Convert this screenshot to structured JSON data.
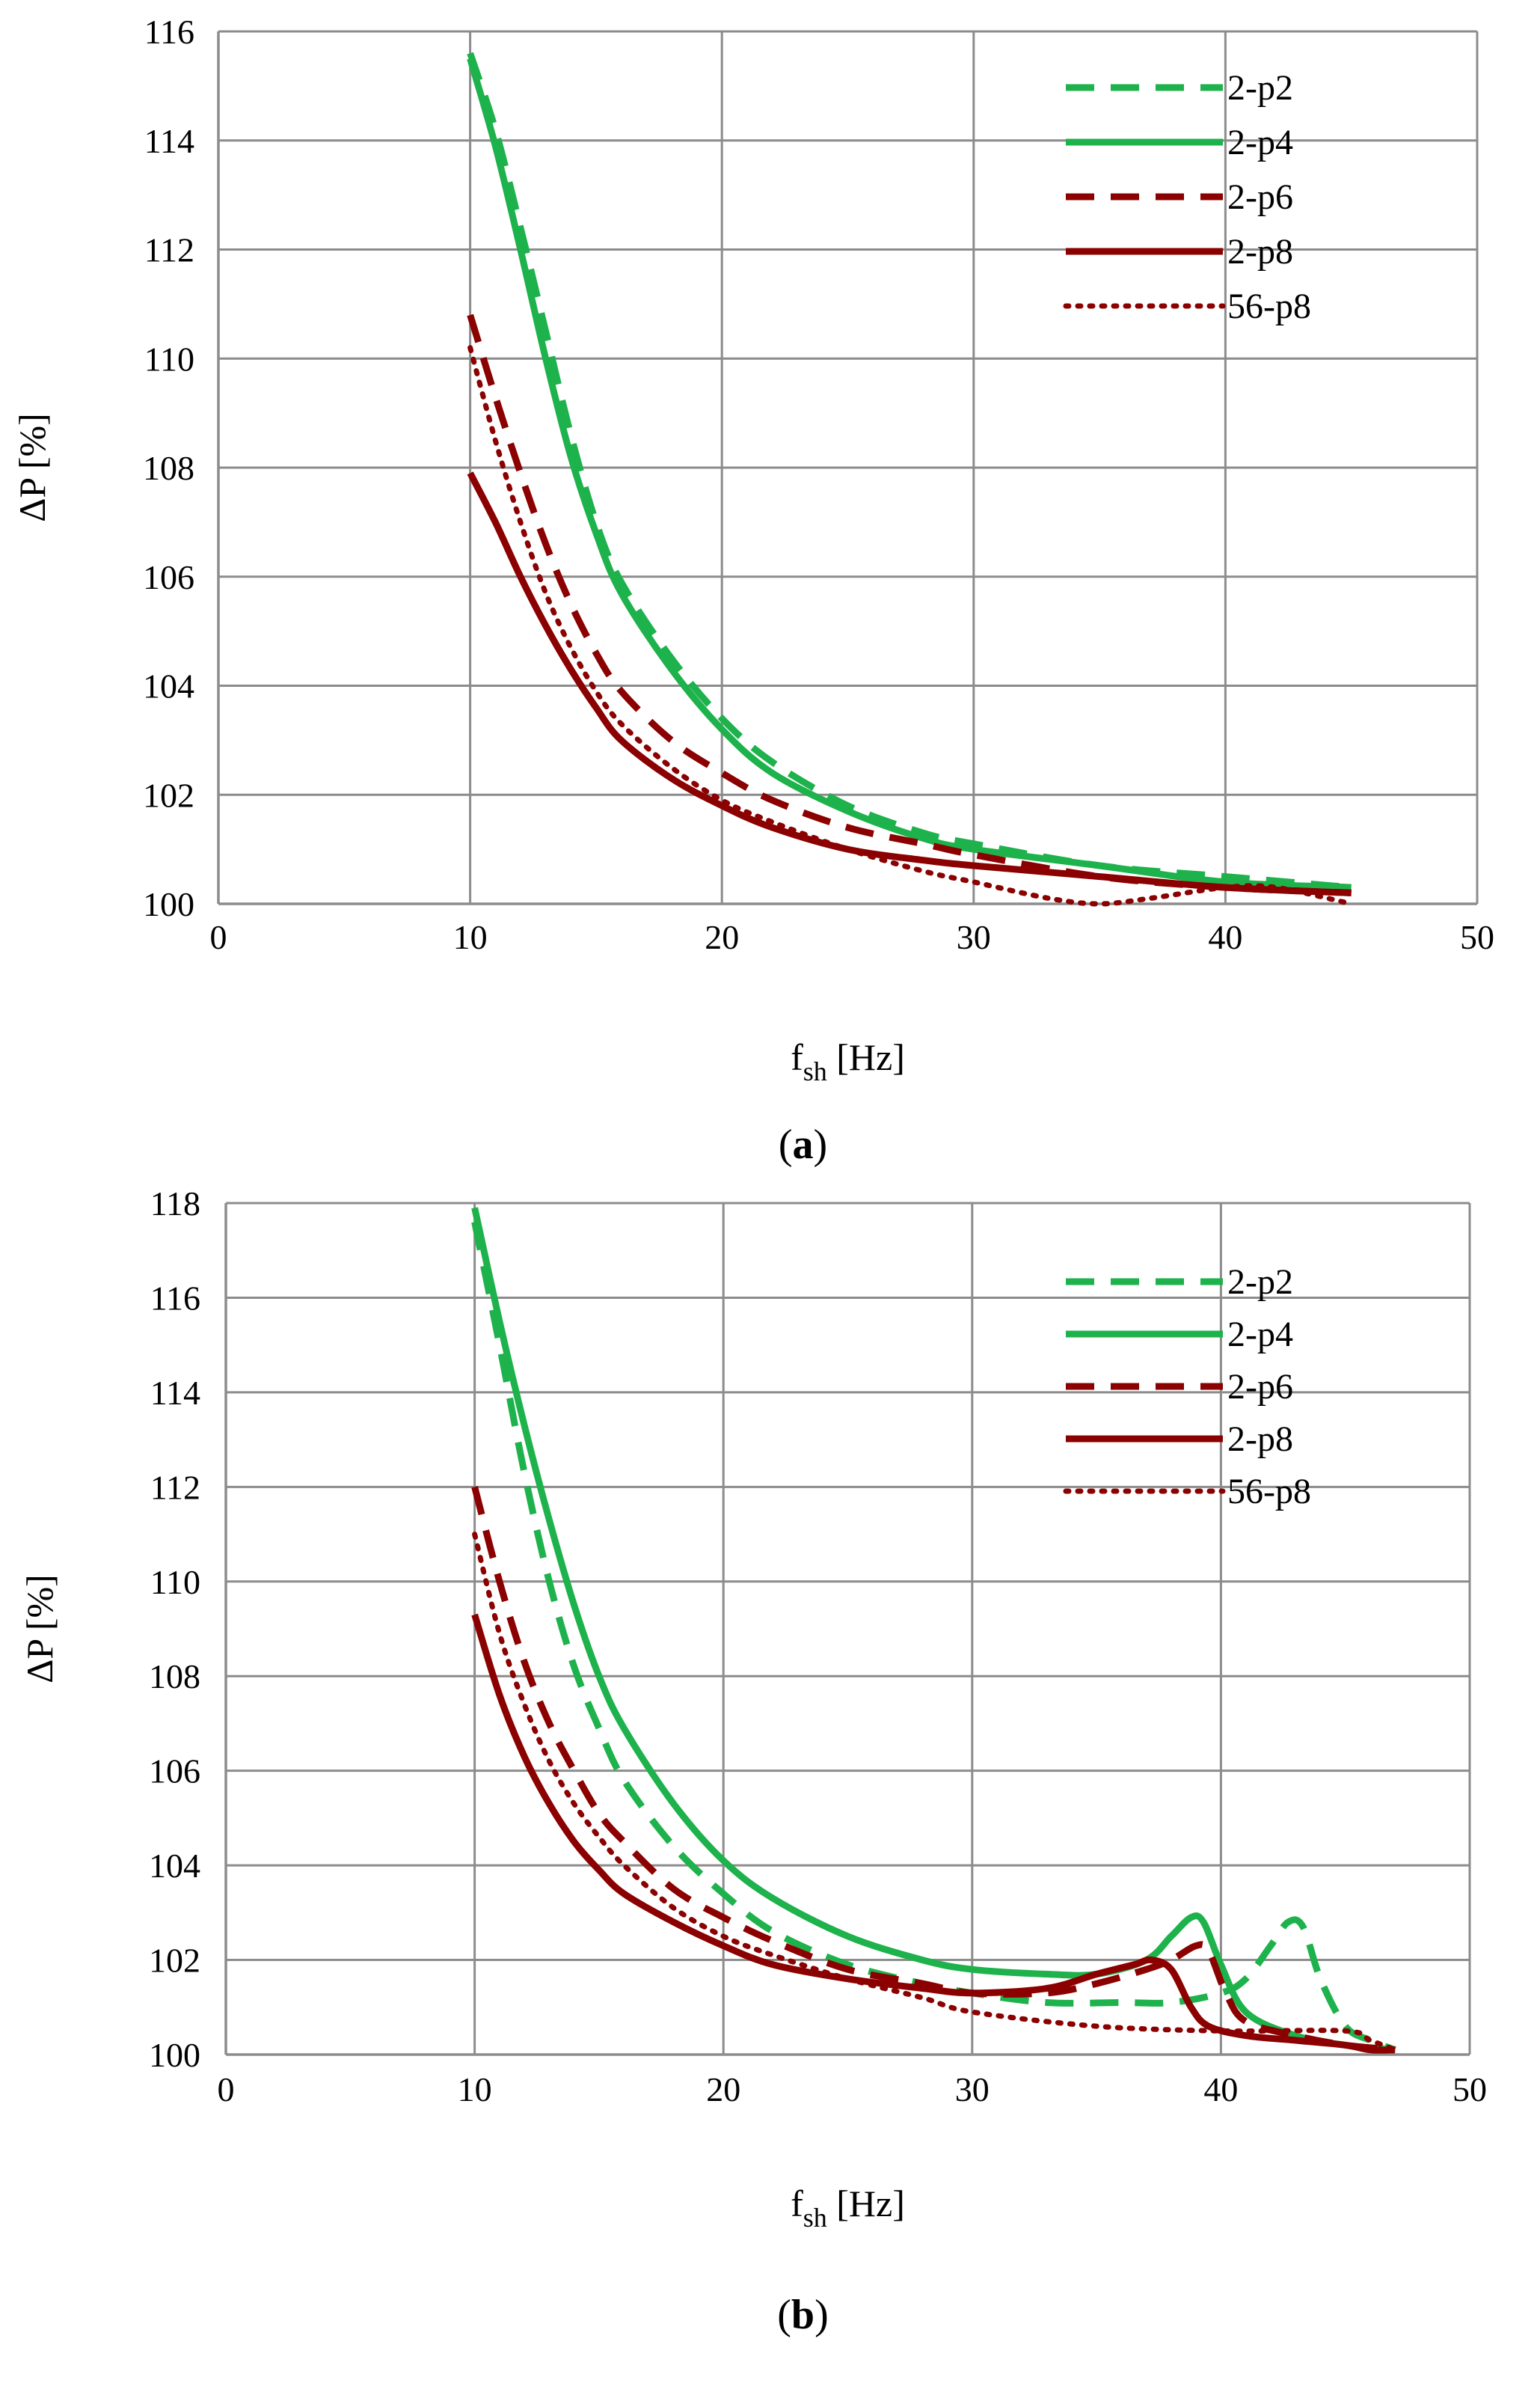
{
  "colors": {
    "green": "#1db24b",
    "darkred": "#8b0000",
    "grid": "#8c8c8c",
    "axis": "#8c8c8c"
  },
  "chart_data": [
    {
      "id": "a",
      "type": "line",
      "caption_open": "(",
      "caption_label": "a",
      "caption_close": ")",
      "xlabel_main": "f",
      "xlabel_sub": "sh",
      "xlabel_unit": " [Hz]",
      "ylabel": "ΔP [%]",
      "xlim": [
        0,
        50
      ],
      "ylim": [
        100,
        116
      ],
      "xticks": [
        0,
        10,
        20,
        30,
        40,
        50
      ],
      "yticks": [
        100,
        102,
        104,
        106,
        108,
        110,
        112,
        114,
        116
      ],
      "grid": true,
      "legend_position": "top-right",
      "series": [
        {
          "name": "2-p2",
          "color": "#1db24b",
          "style": "dashed",
          "x": [
            10,
            11,
            12,
            13,
            14,
            15,
            16,
            18,
            20,
            22,
            25,
            28,
            30,
            35,
            40,
            45
          ],
          "y": [
            115.6,
            114.2,
            112.4,
            110.5,
            108.6,
            107.0,
            105.9,
            104.5,
            103.4,
            102.6,
            101.8,
            101.3,
            101.1,
            100.7,
            100.5,
            100.3
          ]
        },
        {
          "name": "2-p4",
          "color": "#1db24b",
          "style": "solid",
          "x": [
            10,
            11,
            12,
            13,
            14,
            15,
            16,
            18,
            20,
            22,
            25,
            28,
            30,
            35,
            40,
            45
          ],
          "y": [
            115.5,
            113.9,
            112.0,
            110.0,
            108.2,
            106.8,
            105.7,
            104.3,
            103.2,
            102.4,
            101.7,
            101.2,
            101.0,
            100.7,
            100.4,
            100.3
          ]
        },
        {
          "name": "2-p6",
          "color": "#8b0000",
          "style": "dashed",
          "x": [
            10,
            11,
            12,
            13,
            14,
            15,
            16,
            18,
            20,
            22,
            25,
            28,
            30,
            35,
            40,
            45
          ],
          "y": [
            110.8,
            109.3,
            107.9,
            106.6,
            105.5,
            104.6,
            103.9,
            103.0,
            102.4,
            101.9,
            101.4,
            101.1,
            100.9,
            100.5,
            100.3,
            100.2
          ]
        },
        {
          "name": "2-p8",
          "color": "#8b0000",
          "style": "solid",
          "x": [
            10,
            11,
            12,
            13,
            14,
            15,
            16,
            18,
            20,
            22,
            25,
            28,
            30,
            35,
            40,
            45
          ],
          "y": [
            107.9,
            107.0,
            106.0,
            105.1,
            104.3,
            103.6,
            103.0,
            102.3,
            101.8,
            101.4,
            101.0,
            100.8,
            100.7,
            100.5,
            100.3,
            100.2
          ]
        },
        {
          "name": "56-p8",
          "color": "#8b0000",
          "style": "dotted",
          "x": [
            10,
            11,
            12,
            13,
            14,
            15,
            16,
            18,
            20,
            22,
            25,
            28,
            30,
            33,
            35,
            37,
            40,
            42,
            45
          ],
          "y": [
            110.2,
            108.5,
            107.0,
            105.7,
            104.7,
            103.9,
            103.3,
            102.5,
            101.9,
            101.5,
            101.0,
            100.6,
            100.4,
            100.1,
            100.0,
            100.1,
            100.3,
            100.3,
            100.0
          ]
        }
      ]
    },
    {
      "id": "b",
      "type": "line",
      "caption_open": "(",
      "caption_label": "b",
      "caption_close": ")",
      "xlabel_main": "f",
      "xlabel_sub": "sh",
      "xlabel_unit": " [Hz]",
      "ylabel": "ΔP [%]",
      "xlim": [
        0,
        50
      ],
      "ylim": [
        100,
        118
      ],
      "xticks": [
        0,
        10,
        20,
        30,
        40,
        50
      ],
      "yticks": [
        100,
        102,
        104,
        106,
        108,
        110,
        112,
        114,
        116,
        118
      ],
      "grid": true,
      "legend_position": "top-right",
      "series": [
        {
          "name": "2-p2",
          "color": "#1db24b",
          "style": "dashed",
          "x": [
            10,
            11,
            12,
            13,
            14,
            15,
            16,
            18,
            20,
            22,
            25,
            28,
            30,
            33,
            36,
            38,
            40,
            41,
            42,
            42.7,
            43.3,
            44,
            45,
            46,
            47
          ],
          "y": [
            117.6,
            115.0,
            112.3,
            110.0,
            108.2,
            106.9,
            105.8,
            104.4,
            103.4,
            102.6,
            101.9,
            101.5,
            101.3,
            101.1,
            101.1,
            101.1,
            101.3,
            101.6,
            102.3,
            102.8,
            102.7,
            101.6,
            100.6,
            100.3,
            100.1
          ]
        },
        {
          "name": "2-p4",
          "color": "#1db24b",
          "style": "solid",
          "x": [
            10,
            11,
            12,
            13,
            14,
            15,
            16,
            18,
            20,
            22,
            25,
            28,
            30,
            33,
            35,
            37,
            38,
            38.8,
            39.3,
            40,
            41,
            43,
            45,
            47
          ],
          "y": [
            117.9,
            115.5,
            113.3,
            111.3,
            109.5,
            108.0,
            106.9,
            105.3,
            104.1,
            103.3,
            102.5,
            102.0,
            101.8,
            101.7,
            101.7,
            102.0,
            102.5,
            102.9,
            102.8,
            101.9,
            100.9,
            100.4,
            100.2,
            100.1
          ]
        },
        {
          "name": "2-p6",
          "color": "#8b0000",
          "style": "dashed",
          "x": [
            10,
            11,
            12,
            13,
            14,
            15,
            16,
            18,
            20,
            22,
            25,
            28,
            30,
            33,
            35,
            37,
            38,
            39,
            39.5,
            40.2,
            41,
            43,
            45,
            47
          ],
          "y": [
            112.0,
            110.0,
            108.3,
            107.0,
            106.0,
            105.1,
            104.5,
            103.5,
            102.9,
            102.4,
            101.8,
            101.5,
            101.3,
            101.3,
            101.5,
            101.8,
            102.0,
            102.3,
            102.2,
            101.3,
            100.7,
            100.4,
            100.2,
            100.1
          ]
        },
        {
          "name": "2-p8",
          "color": "#8b0000",
          "style": "solid",
          "x": [
            10,
            11,
            12,
            13,
            14,
            15,
            16,
            18,
            20,
            22,
            25,
            28,
            30,
            33,
            35,
            36.5,
            37.2,
            38,
            38.8,
            39.5,
            41,
            43,
            45,
            46,
            47
          ],
          "y": [
            109.3,
            107.6,
            106.3,
            105.3,
            104.5,
            103.9,
            103.4,
            102.8,
            102.3,
            101.9,
            101.6,
            101.4,
            101.3,
            101.4,
            101.7,
            101.9,
            102.0,
            101.8,
            101.0,
            100.6,
            100.4,
            100.3,
            100.2,
            100.1,
            100.1
          ]
        },
        {
          "name": "56-p8",
          "color": "#8b0000",
          "style": "dotted",
          "x": [
            10,
            11,
            12,
            13,
            14,
            15,
            16,
            18,
            20,
            22,
            25,
            28,
            30,
            35,
            40,
            45,
            46,
            47
          ],
          "y": [
            111.0,
            108.9,
            107.4,
            106.2,
            105.3,
            104.6,
            104.0,
            103.1,
            102.5,
            102.1,
            101.6,
            101.2,
            100.9,
            100.6,
            100.5,
            100.5,
            100.3,
            100.1
          ]
        }
      ]
    }
  ]
}
